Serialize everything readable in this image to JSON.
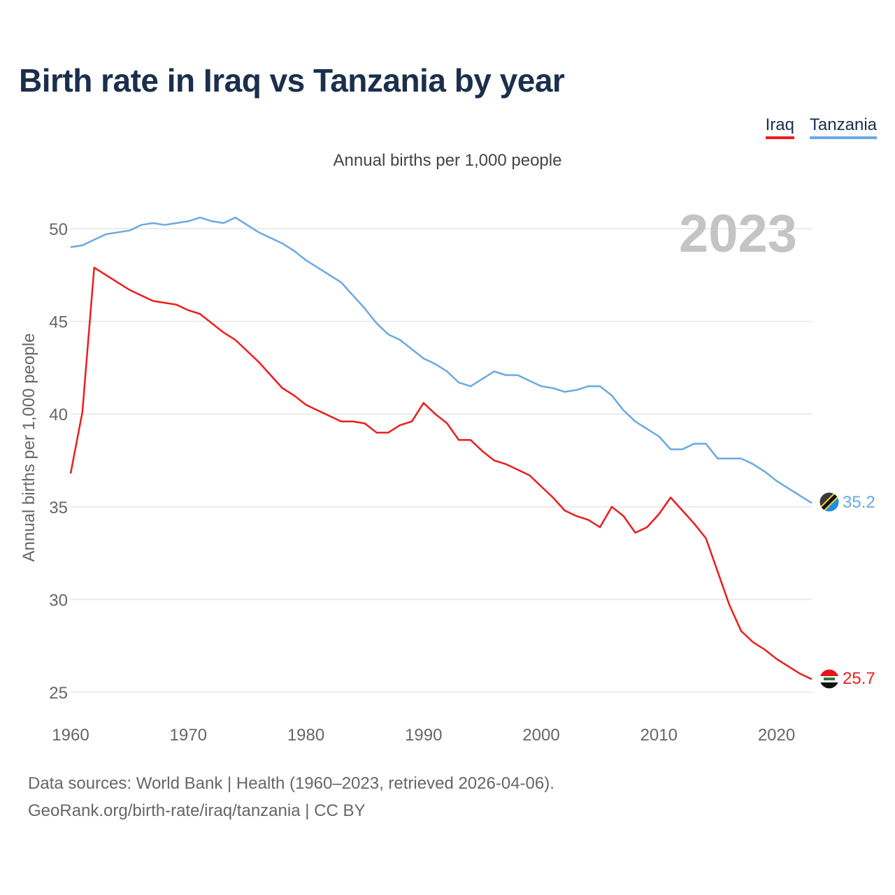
{
  "title": "Birth rate in Iraq vs Tanzania by year",
  "subtitle": "Annual births per 1,000 people",
  "legend": {
    "iraq": "Iraq",
    "tanzania": "Tanzania"
  },
  "year_watermark": "2023",
  "footer": {
    "line1": "Data sources: World Bank | Health (1960–2023, retrieved 2026-04-06).",
    "line2": "GeoRank.org/birth-rate/iraq/tanzania | CC BY"
  },
  "colors": {
    "iraq": "#ee1c1c",
    "tanzania": "#6aa9e3",
    "title": "#1b2f4d"
  },
  "chart_data": {
    "type": "line",
    "title": "Birth rate in Iraq vs Tanzania by year",
    "ylabel": "Annual births per 1,000 people",
    "xlabel": "",
    "xlim": [
      1960,
      2023
    ],
    "ylim": [
      25,
      52
    ],
    "yticks": [
      25,
      30,
      35,
      40,
      45,
      50
    ],
    "xticks": [
      1960,
      1970,
      1980,
      1990,
      2000,
      2010,
      2020
    ],
    "grid": true,
    "legend": "top-right",
    "x": [
      1960,
      1961,
      1962,
      1963,
      1964,
      1965,
      1966,
      1967,
      1968,
      1969,
      1970,
      1971,
      1972,
      1973,
      1974,
      1975,
      1976,
      1977,
      1978,
      1979,
      1980,
      1981,
      1982,
      1983,
      1984,
      1985,
      1986,
      1987,
      1988,
      1989,
      1990,
      1991,
      1992,
      1993,
      1994,
      1995,
      1996,
      1997,
      1998,
      1999,
      2000,
      2001,
      2002,
      2003,
      2004,
      2005,
      2006,
      2007,
      2008,
      2009,
      2010,
      2011,
      2012,
      2013,
      2014,
      2015,
      2016,
      2017,
      2018,
      2019,
      2020,
      2021,
      2022,
      2023
    ],
    "series": [
      {
        "name": "Iraq",
        "color": "#ee1c1c",
        "end_label": "25.7",
        "values": [
          36.8,
          40.1,
          47.9,
          47.5,
          47.1,
          46.7,
          46.4,
          46.1,
          46.0,
          45.9,
          45.6,
          45.4,
          44.9,
          44.4,
          44.0,
          43.4,
          42.8,
          42.1,
          41.4,
          41.0,
          40.5,
          40.2,
          39.9,
          39.6,
          39.6,
          39.5,
          39.0,
          39.0,
          39.4,
          39.6,
          40.6,
          40.0,
          39.5,
          38.6,
          38.6,
          38.0,
          37.5,
          37.3,
          37.0,
          36.7,
          36.1,
          35.5,
          34.8,
          34.5,
          34.3,
          33.9,
          35.0,
          34.5,
          33.6,
          33.9,
          34.6,
          35.5,
          34.8,
          34.1,
          33.3,
          31.5,
          29.7,
          28.3,
          27.7,
          27.3,
          26.8,
          26.4,
          26.0,
          25.7
        ]
      },
      {
        "name": "Tanzania",
        "color": "#6aa9e3",
        "end_label": "35.2",
        "values": [
          49.0,
          49.1,
          49.4,
          49.7,
          49.8,
          49.9,
          50.2,
          50.3,
          50.2,
          50.3,
          50.4,
          50.6,
          50.4,
          50.3,
          50.6,
          50.2,
          49.8,
          49.5,
          49.2,
          48.8,
          48.3,
          47.9,
          47.5,
          47.1,
          46.4,
          45.7,
          44.9,
          44.3,
          44.0,
          43.5,
          43.0,
          42.7,
          42.3,
          41.7,
          41.5,
          41.9,
          42.3,
          42.1,
          42.1,
          41.8,
          41.5,
          41.4,
          41.2,
          41.3,
          41.5,
          41.5,
          41.0,
          40.2,
          39.6,
          39.2,
          38.8,
          38.1,
          38.1,
          38.4,
          38.4,
          37.6,
          37.6,
          37.6,
          37.3,
          36.9,
          36.4,
          36.0,
          35.6,
          35.2
        ]
      }
    ]
  }
}
